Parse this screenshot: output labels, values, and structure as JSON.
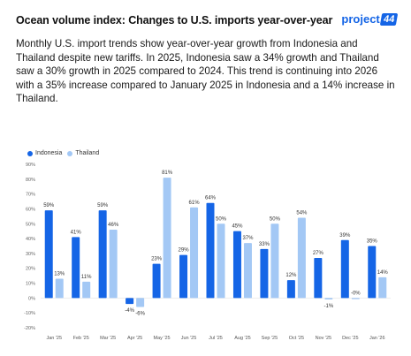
{
  "header": {
    "title": "Ocean volume index: Changes to U.S. imports year-over-year",
    "logo_text": "project",
    "logo_badge": "44",
    "description": "Monthly U.S. import trends show year-over-year growth from Indonesia and Thailand despite new tariffs. In 2025, Indonesia saw a 34% growth and Thailand saw a 30% growth in 2025 compared to 2024. This trend is continuing into 2026 with a 35% increase compared to January 2025 in Indonesia and a 14% increase in Thailand."
  },
  "colors": {
    "indonesia": "#1565e6",
    "thailand": "#a3c8f5",
    "brand": "#1565e6"
  },
  "chart_data": {
    "type": "bar",
    "categories": [
      "Jan '25",
      "Feb '25",
      "Mar '25",
      "Apr '25",
      "May '25",
      "Jun '25",
      "Jul '25",
      "Aug '25",
      "Sep '25",
      "Oct '25",
      "Nov '25",
      "Dec '25",
      "Jan '26"
    ],
    "series": [
      {
        "name": "Indonesia",
        "values": [
          59,
          41,
          59,
          -4,
          23,
          29,
          64,
          45,
          33,
          12,
          27,
          39,
          35
        ]
      },
      {
        "name": "Thailand",
        "values": [
          13,
          11,
          46,
          -6,
          81,
          61,
          50,
          37,
          50,
          54,
          -1,
          0,
          14
        ]
      }
    ],
    "labels": {
      "Indonesia": [
        "59%",
        "41%",
        "59%",
        "-4%",
        "23%",
        "29%",
        "64%",
        "45%",
        "33%",
        "12%",
        "27%",
        "39%",
        "35%"
      ],
      "Thailand": [
        "13%",
        "11%",
        "46%",
        "-6%",
        "81%",
        "61%",
        "50%",
        "37%",
        "50%",
        "54%",
        "-1%",
        "-0%",
        "14%"
      ]
    },
    "yticks": [
      "90%",
      "80%",
      "70%",
      "60%",
      "50%",
      "40%",
      "30%",
      "20%",
      "10%",
      "0%",
      "-10%",
      "-20%"
    ],
    "ylim": [
      -20,
      90
    ],
    "legend_position": "top-left",
    "grid": false
  }
}
